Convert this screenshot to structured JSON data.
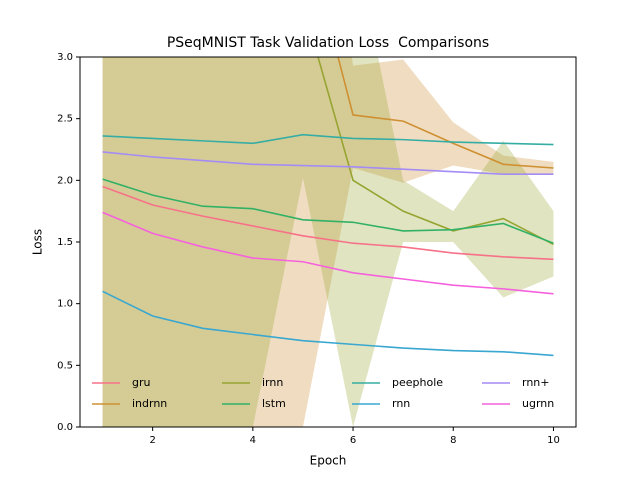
{
  "chart_data": {
    "type": "line",
    "title": "PSeqMNIST Task Validation Loss  Comparisons",
    "xlabel": "Epoch",
    "ylabel": "Loss",
    "x": [
      1,
      2,
      3,
      4,
      5,
      6,
      7,
      8,
      9,
      10
    ],
    "xlim": [
      0.55,
      10.45
    ],
    "xticks": [
      2,
      4,
      6,
      8,
      10
    ],
    "ylim": [
      0,
      3
    ],
    "yticks": [
      {
        "value": 0,
        "label": "0.0"
      },
      0.5,
      {
        "value": 1,
        "label": "1.0"
      },
      1.5,
      {
        "value": 2,
        "label": "2.0"
      },
      2.5,
      {
        "value": 3,
        "label": "3.0"
      }
    ],
    "legend": "lower left",
    "legend_columns": 4,
    "series": [
      {
        "name": "gru",
        "color": "#f77189",
        "values": [
          1.95,
          1.8,
          1.71,
          1.63,
          1.55,
          1.49,
          1.46,
          1.41,
          1.38,
          1.36
        ]
      },
      {
        "name": "indrnn",
        "color": "#ce9032",
        "values": [
          null,
          null,
          null,
          null,
          4.1,
          2.53,
          2.48,
          2.3,
          2.13,
          2.1
        ],
        "upper": [
          6,
          6,
          6,
          6,
          6,
          2.93,
          2.98,
          2.47,
          2.2,
          2.15
        ],
        "lower": [
          0,
          0,
          0,
          0,
          0,
          2.1,
          1.98,
          2.12,
          2.05,
          2.05
        ]
      },
      {
        "name": "irnn",
        "color": "#97a431",
        "values": [
          null,
          null,
          null,
          null,
          3.43,
          2.0,
          1.75,
          1.59,
          1.69,
          1.48
        ],
        "upper": [
          5,
          5,
          5,
          5,
          5,
          4,
          2.0,
          1.75,
          2.32,
          1.75
        ],
        "lower": [
          0,
          0,
          0,
          0,
          2.02,
          0,
          1.5,
          1.5,
          1.05,
          1.22
        ]
      },
      {
        "name": "lstm",
        "color": "#32b166",
        "values": [
          2.01,
          1.88,
          1.79,
          1.77,
          1.68,
          1.66,
          1.59,
          1.6,
          1.65,
          1.49
        ]
      },
      {
        "name": "peephole",
        "color": "#36ada4",
        "values": [
          2.36,
          2.34,
          2.32,
          2.3,
          2.37,
          2.34,
          2.33,
          2.31,
          2.3,
          2.29
        ]
      },
      {
        "name": "rnn",
        "color": "#39a7d0",
        "values": [
          1.1,
          0.9,
          0.8,
          0.75,
          0.7,
          0.67,
          0.64,
          0.62,
          0.61,
          0.58
        ]
      },
      {
        "name": "rnn+",
        "color": "#a48cf4",
        "values": [
          2.23,
          2.19,
          2.16,
          2.13,
          2.12,
          2.11,
          2.09,
          2.07,
          2.05,
          2.05
        ]
      },
      {
        "name": "ugrnn",
        "color": "#f561dd",
        "values": [
          1.74,
          1.57,
          1.46,
          1.37,
          1.34,
          1.25,
          1.2,
          1.15,
          1.12,
          1.08
        ]
      }
    ]
  }
}
